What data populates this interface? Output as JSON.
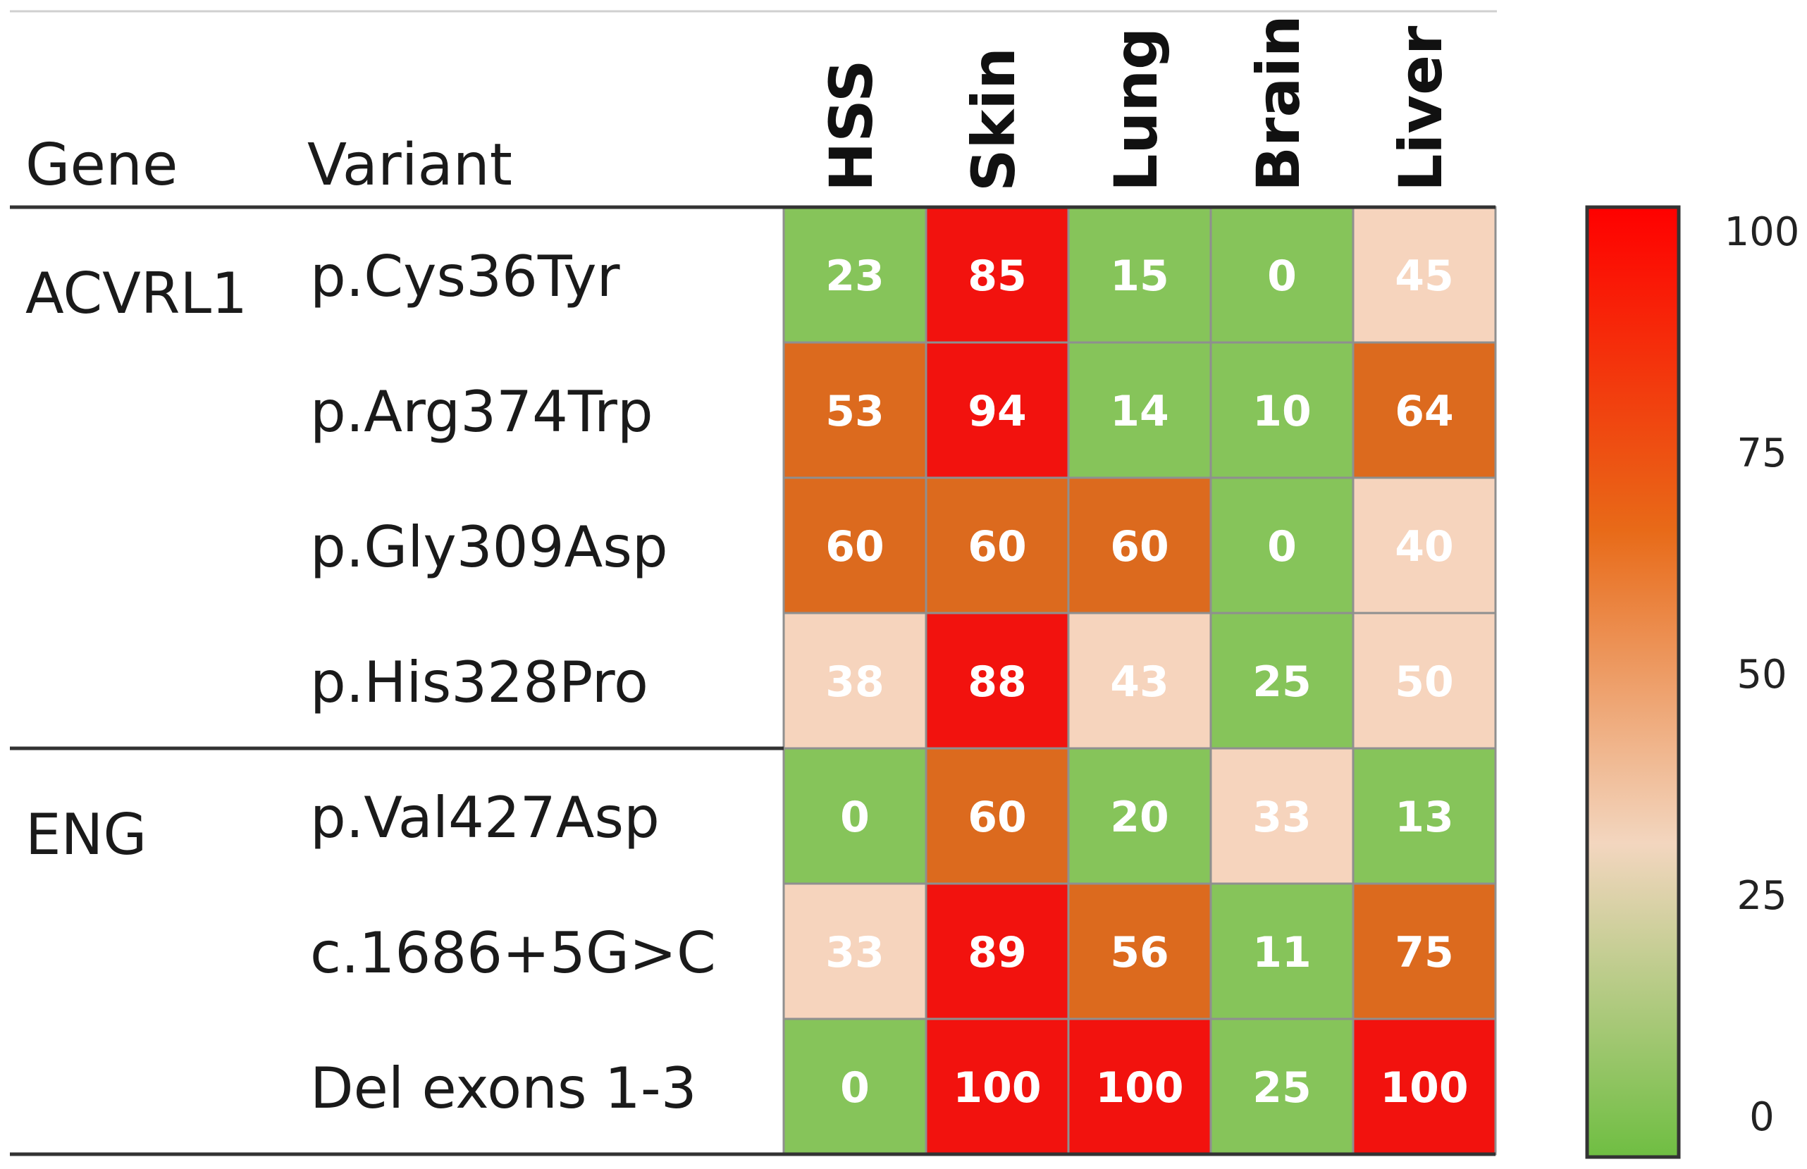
{
  "chart_data": {
    "type": "heatmap",
    "header": {
      "gene": "Gene",
      "variant": "Variant"
    },
    "columns": [
      "HSS",
      "Skin",
      "Lung",
      "Brain",
      "Liver"
    ],
    "groups": [
      {
        "gene": "ACVRL1",
        "rows": [
          {
            "variant": "p.Cys36Tyr",
            "values": [
              23,
              85,
              15,
              0,
              45
            ]
          },
          {
            "variant": "p.Arg374Trp",
            "values": [
              53,
              94,
              14,
              10,
              64
            ]
          },
          {
            "variant": "p.Gly309Asp",
            "values": [
              60,
              60,
              60,
              0,
              40
            ]
          },
          {
            "variant": "p.His328Pro",
            "values": [
              38,
              88,
              43,
              25,
              50
            ]
          }
        ]
      },
      {
        "gene": "ENG",
        "rows": [
          {
            "variant": "p.Val427Asp",
            "values": [
              0,
              60,
              20,
              33,
              13
            ]
          },
          {
            "variant": "c.1686+5G>C",
            "values": [
              33,
              89,
              56,
              11,
              75
            ]
          },
          {
            "variant": "Del exons 1-3",
            "values": [
              0,
              100,
              100,
              25,
              100
            ]
          }
        ]
      }
    ],
    "colorbar": {
      "min": 0,
      "max": 100,
      "ticks": [
        100,
        75,
        50,
        25,
        0
      ]
    },
    "categories": [
      {
        "min": 0,
        "max": 29.99,
        "fill": "#86c45a",
        "text": "#ffffff"
      },
      {
        "min": 30,
        "max": 50,
        "fill": "#f6d4bd",
        "text": "#ffffff"
      },
      {
        "min": 51,
        "max": 80,
        "fill": "#dc6a1e",
        "text": "#ffffff"
      },
      {
        "min": 81,
        "max": 100,
        "fill": "#f2120e",
        "text": "#ffffff"
      }
    ],
    "gradient_stops": [
      "#6fbe42",
      "#f3d6bf",
      "#e86a18",
      "#ff0000"
    ]
  }
}
